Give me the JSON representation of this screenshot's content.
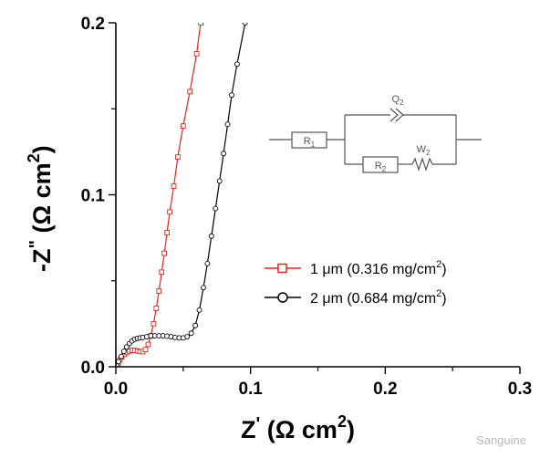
{
  "chart_data": {
    "type": "line",
    "title": "",
    "xlabel_main": "Z",
    "xlabel_prime": "'",
    "xlabel_unit": "(Ω cm",
    "xlabel_exp": "2",
    "xlabel_close": ")",
    "ylabel_main": "-Z",
    "ylabel_prime": "\"",
    "ylabel_unit": "(Ω cm",
    "ylabel_exp": "2",
    "ylabel_close": ")",
    "xlim": [
      0,
      0.3
    ],
    "ylim": [
      0,
      0.2
    ],
    "x_ticks": [
      "0.0",
      "0.1",
      "0.2",
      "0.3"
    ],
    "y_ticks": [
      "0.0",
      "0.1",
      "0.2"
    ],
    "grid": false,
    "legend_position": "right-middle",
    "series": [
      {
        "name": "1 μm (0.316 mg/cm",
        "name_exp": "2",
        "name_close": ")",
        "color": "#e8231c",
        "marker": "square",
        "points": [
          [
            0.0008,
            0.0005
          ],
          [
            0.0018,
            0.0022
          ],
          [
            0.003,
            0.004
          ],
          [
            0.0045,
            0.0058
          ],
          [
            0.0062,
            0.0072
          ],
          [
            0.008,
            0.0083
          ],
          [
            0.01,
            0.0091
          ],
          [
            0.012,
            0.0095
          ],
          [
            0.014,
            0.0095
          ],
          [
            0.016,
            0.0092
          ],
          [
            0.018,
            0.0088
          ],
          [
            0.02,
            0.0088
          ],
          [
            0.022,
            0.01
          ],
          [
            0.024,
            0.013
          ],
          [
            0.026,
            0.018
          ],
          [
            0.028,
            0.025
          ],
          [
            0.03,
            0.034
          ],
          [
            0.032,
            0.044
          ],
          [
            0.034,
            0.055
          ],
          [
            0.036,
            0.066
          ],
          [
            0.038,
            0.078
          ],
          [
            0.04,
            0.09
          ],
          [
            0.043,
            0.105
          ],
          [
            0.046,
            0.122
          ],
          [
            0.05,
            0.14
          ],
          [
            0.055,
            0.16
          ],
          [
            0.06,
            0.182
          ],
          [
            0.063,
            0.2
          ]
        ]
      },
      {
        "name": "2 μm (0.684 mg/cm",
        "name_exp": "2",
        "name_close": ")",
        "color": "#000000",
        "marker": "circle",
        "points": [
          [
            0.0008,
            0.0005
          ],
          [
            0.002,
            0.003
          ],
          [
            0.004,
            0.006
          ],
          [
            0.006,
            0.009
          ],
          [
            0.008,
            0.0115
          ],
          [
            0.01,
            0.0135
          ],
          [
            0.012,
            0.015
          ],
          [
            0.014,
            0.016
          ],
          [
            0.016,
            0.0165
          ],
          [
            0.018,
            0.0168
          ],
          [
            0.02,
            0.017
          ],
          [
            0.023,
            0.0175
          ],
          [
            0.026,
            0.018
          ],
          [
            0.029,
            0.018
          ],
          [
            0.032,
            0.018
          ],
          [
            0.035,
            0.018
          ],
          [
            0.038,
            0.0178
          ],
          [
            0.041,
            0.0175
          ],
          [
            0.044,
            0.017
          ],
          [
            0.047,
            0.0168
          ],
          [
            0.05,
            0.0168
          ],
          [
            0.053,
            0.0175
          ],
          [
            0.056,
            0.0195
          ],
          [
            0.059,
            0.024
          ],
          [
            0.062,
            0.033
          ],
          [
            0.065,
            0.046
          ],
          [
            0.068,
            0.06
          ],
          [
            0.071,
            0.076
          ],
          [
            0.074,
            0.092
          ],
          [
            0.077,
            0.108
          ],
          [
            0.08,
            0.124
          ],
          [
            0.083,
            0.141
          ],
          [
            0.086,
            0.158
          ],
          [
            0.09,
            0.176
          ],
          [
            0.096,
            0.2
          ]
        ]
      }
    ],
    "inset_circuit": {
      "labels": [
        {
          "text": "R",
          "sub": "1"
        },
        {
          "text": "Q",
          "sub": "2"
        },
        {
          "text": "R",
          "sub": "2"
        },
        {
          "text": "W",
          "sub": "2"
        }
      ]
    }
  },
  "watermark": "Sanguine"
}
